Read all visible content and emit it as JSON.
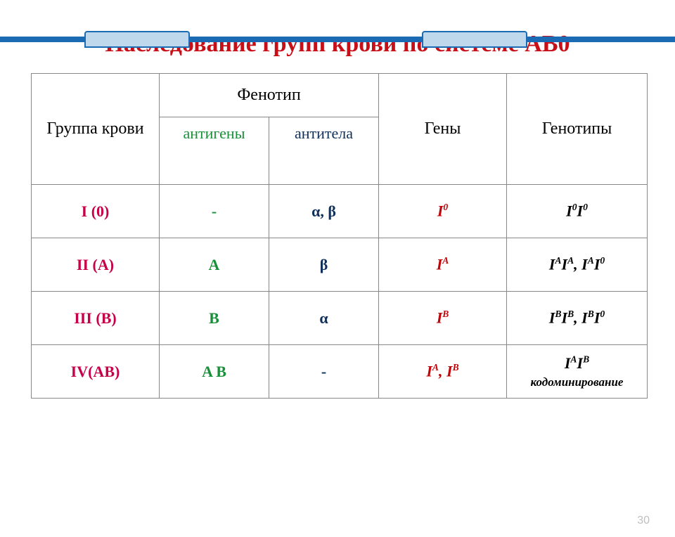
{
  "title": "Наследование групп крови по системе АВ0",
  "pageNumber": "30",
  "headers": {
    "group": "Группа крови",
    "phenotype": "Фенотип",
    "genes": "Гены",
    "genotypes": "Генотипы",
    "antigens": "антигены",
    "antibodies": "антитела"
  },
  "rows": [
    {
      "group": "I (0)",
      "antigen": "-",
      "antibody": "α, β",
      "gene_html": "I<sup>0</sup>",
      "genotype_html": "I<sup>0</sup>I<sup>0</sup>",
      "note": ""
    },
    {
      "group": "II (A)",
      "antigen": "A",
      "antibody": "β",
      "gene_html": "I<sup>A</sup>",
      "genotype_html": "I<sup>A</sup>I<sup>A</sup>,  I<sup>A</sup>I<sup>0</sup>",
      "note": ""
    },
    {
      "group": "III (B)",
      "antigen": "B",
      "antibody": "α",
      "gene_html": "I<sup>B</sup>",
      "genotype_html": "I<sup>B</sup>I<sup>B</sup>,  I<sup>B</sup>I<sup>0</sup>",
      "note": ""
    },
    {
      "group": "IV(AB)",
      "antigen": "A B",
      "antibody": "-",
      "gene_html": "I<sup>A</sup>, I<sup>B</sup>",
      "genotype_html": "I<sup>A</sup>I<sup>B</sup>",
      "note": "кодоминирование"
    }
  ],
  "colors": {
    "title": "#c80f18",
    "green": "#1a8f3a",
    "navy": "#10305a",
    "magenta": "#c7004a",
    "red": "#c0050a",
    "black": "#000000",
    "topbar": "#1a6bb3"
  }
}
